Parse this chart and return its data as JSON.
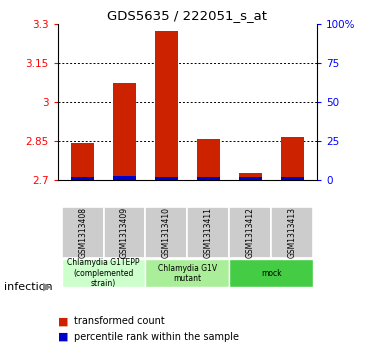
{
  "title": "GDS5635 / 222051_s_at",
  "samples": [
    "GSM1313408",
    "GSM1313409",
    "GSM1313410",
    "GSM1313411",
    "GSM1313412",
    "GSM1313413"
  ],
  "transformed_counts": [
    2.84,
    3.07,
    3.27,
    2.855,
    2.725,
    2.865
  ],
  "percentile_ranks": [
    2.0,
    2.5,
    2.0,
    2.0,
    1.5,
    2.0
  ],
  "ylim": [
    2.7,
    3.3
  ],
  "yticks": [
    2.7,
    2.85,
    3.0,
    3.15,
    3.3
  ],
  "ytick_labels": [
    "2.7",
    "2.85",
    "3",
    "3.15",
    "3.3"
  ],
  "right_yticks": [
    0,
    25,
    50,
    75,
    100
  ],
  "right_ytick_labels": [
    "0",
    "25",
    "50",
    "75",
    "100%"
  ],
  "groups": [
    {
      "label": "Chlamydia G1TEPP\n(complemented\nstrain)",
      "color": "#ccffcc",
      "cols": [
        0,
        1
      ]
    },
    {
      "label": "Chlamydia G1V\nmutant",
      "color": "#aaee99",
      "cols": [
        2,
        3
      ]
    },
    {
      "label": "mock",
      "color": "#44cc44",
      "cols": [
        4,
        5
      ]
    }
  ],
  "bar_color_red": "#cc2200",
  "bar_color_blue": "#0000cc",
  "bar_width": 0.55,
  "infection_label": "infection",
  "legend_red": "transformed count",
  "legend_blue": "percentile rank within the sample",
  "background_color": "#ffffff",
  "sample_box_color": "#cccccc",
  "grid_color": "#000000"
}
